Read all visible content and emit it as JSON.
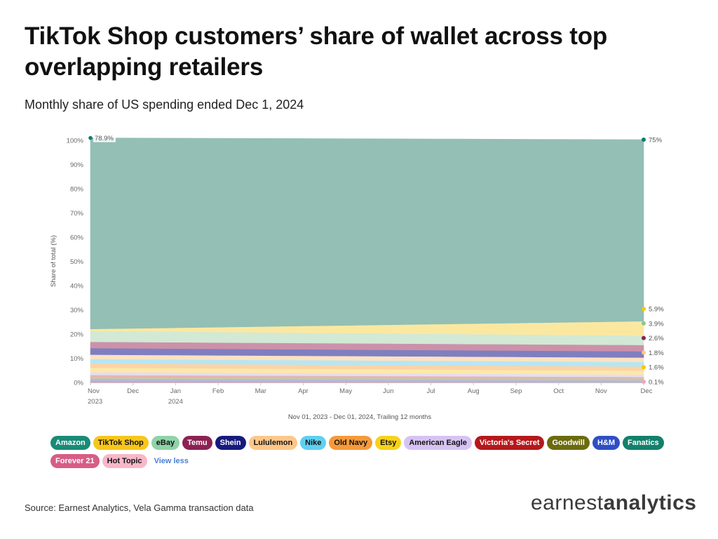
{
  "title": "TikTok Shop customers’ share of wallet across top overlapping retailers",
  "subtitle": "Monthly share of US spending ended Dec 1, 2024",
  "source": "Source: Earnest Analytics, Vela Gamma transaction data",
  "logo": {
    "part1": "earnest",
    "part2": "analytics"
  },
  "legend_toggle": "View less",
  "chart_data": {
    "type": "area",
    "stacked": true,
    "x": [
      "Nov 2023",
      "Dec 2023",
      "Jan 2024",
      "Feb 2024",
      "Mar 2024",
      "Apr 2024",
      "May 2024",
      "Jun 2024",
      "Jul 2024",
      "Aug 2024",
      "Sep 2024",
      "Oct 2024",
      "Nov 2024",
      "Dec 2024"
    ],
    "x_ticks": [
      {
        "label": "Nov",
        "sub": "2023"
      },
      {
        "label": "Dec",
        "sub": ""
      },
      {
        "label": "Jan",
        "sub": "2024"
      },
      {
        "label": "Feb",
        "sub": ""
      },
      {
        "label": "Mar",
        "sub": ""
      },
      {
        "label": "Apr",
        "sub": ""
      },
      {
        "label": "May",
        "sub": ""
      },
      {
        "label": "Jun",
        "sub": ""
      },
      {
        "label": "Jul",
        "sub": ""
      },
      {
        "label": "Aug",
        "sub": ""
      },
      {
        "label": "Sep",
        "sub": ""
      },
      {
        "label": "Oct",
        "sub": ""
      },
      {
        "label": "Nov",
        "sub": ""
      },
      {
        "label": "Dec",
        "sub": ""
      }
    ],
    "ylabel": "Share of total (%)",
    "xlabel": "Nov 01, 2023 - Dec 01, 2024, Trailing 12 months",
    "ylim": [
      0,
      100
    ],
    "y_ticks": [
      "0%",
      "10%",
      "20%",
      "30%",
      "40%",
      "50%",
      "60%",
      "70%",
      "80%",
      "90%",
      "100%"
    ],
    "grid": false,
    "legend_position": "bottom",
    "start_label": "78.9%",
    "series": [
      {
        "name": "Forever 21",
        "color": "#d9a0b6",
        "start": 0.6,
        "end": 0.1,
        "end_label": "0.1%"
      },
      {
        "name": "H&M",
        "color": "#b2b8e0",
        "start": 0.9,
        "end": 0.8,
        "end_label": ""
      },
      {
        "name": "Goodwill",
        "color": "#c9c8a4",
        "start": 0.9,
        "end": 0.8,
        "end_label": ""
      },
      {
        "name": "Victoria's Secret",
        "color": "#e8b4b0",
        "start": 0.7,
        "end": 0.6,
        "end_label": ""
      },
      {
        "name": "American Eagle",
        "color": "#e6dcf4",
        "start": 1.2,
        "end": 1.0,
        "end_label": ""
      },
      {
        "name": "Etsy",
        "color": "#fbe9a8",
        "start": 1.8,
        "end": 1.6,
        "end_label": "1.6%"
      },
      {
        "name": "Old Navy",
        "color": "#fdd3a6",
        "start": 1.8,
        "end": 1.7,
        "end_label": ""
      },
      {
        "name": "Nike",
        "color": "#b6e6f4",
        "start": 1.8,
        "end": 1.9,
        "end_label": ""
      },
      {
        "name": "Lululemon",
        "color": "#fde2c2",
        "start": 1.8,
        "end": 1.8,
        "end_label": "1.8%"
      },
      {
        "name": "Shein",
        "color": "#7f7fbf",
        "start": 2.7,
        "end": 2.6,
        "end_label": ""
      },
      {
        "name": "Temu",
        "color": "#cc91aa",
        "start": 2.6,
        "end": 2.6,
        "end_label": "2.6%"
      },
      {
        "name": "eBay",
        "color": "#d2e9d5",
        "start": 4.5,
        "end": 3.9,
        "end_label": "3.9%"
      },
      {
        "name": "TikTok Shop",
        "color": "#fbe8a0",
        "start": 0.8,
        "end": 5.9,
        "end_label": "5.9%"
      },
      {
        "name": "Amazon",
        "color": "#93bfb5",
        "start": 78.9,
        "end": 75.0,
        "end_label": "75%"
      }
    ],
    "end_dot_colors": {
      "Amazon": "#0f7b6c",
      "TikTok Shop": "#f5c800",
      "eBay": "#86c98a",
      "Temu": "#8b2252",
      "Lululemon": "#fdc78a",
      "Etsy": "#f5c800",
      "Forever 21": "#e9a9c0"
    },
    "legend": [
      {
        "name": "Amazon",
        "bg": "#1a8a78",
        "fg": "#ffffff"
      },
      {
        "name": "TikTok Shop",
        "bg": "#f7c61b",
        "fg": "#111111"
      },
      {
        "name": "eBay",
        "bg": "#8fd3a8",
        "fg": "#111111"
      },
      {
        "name": "Temu",
        "bg": "#8b2252",
        "fg": "#ffffff"
      },
      {
        "name": "Shein",
        "bg": "#171a7d",
        "fg": "#ffffff"
      },
      {
        "name": "Lululemon",
        "bg": "#fdc78a",
        "fg": "#111111"
      },
      {
        "name": "Nike",
        "bg": "#5fd0f0",
        "fg": "#111111"
      },
      {
        "name": "Old Navy",
        "bg": "#f59a3a",
        "fg": "#111111"
      },
      {
        "name": "Etsy",
        "bg": "#f7d21b",
        "fg": "#111111"
      },
      {
        "name": "American Eagle",
        "bg": "#d7c3f3",
        "fg": "#111111"
      },
      {
        "name": "Victoria's Secret",
        "bg": "#b5181b",
        "fg": "#ffffff"
      },
      {
        "name": "Goodwill",
        "bg": "#6b6b0e",
        "fg": "#ffffff"
      },
      {
        "name": "H&M",
        "bg": "#2e4fc4",
        "fg": "#ffffff"
      },
      {
        "name": "Fanatics",
        "bg": "#13806a",
        "fg": "#ffffff"
      },
      {
        "name": "Forever 21",
        "bg": "#d85c86",
        "fg": "#ffffff"
      },
      {
        "name": "Hot Topic",
        "bg": "#f8b8c8",
        "fg": "#111111"
      }
    ]
  }
}
